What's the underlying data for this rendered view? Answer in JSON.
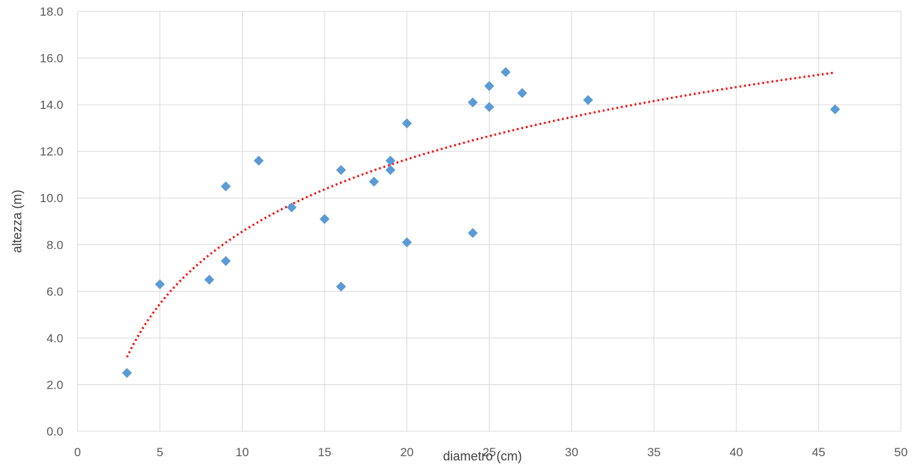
{
  "chart_data": {
    "type": "scatter",
    "title": "",
    "xlabel": "diametro (cm)",
    "ylabel": "altezza (m)",
    "xlim": [
      0,
      50
    ],
    "ylim": [
      0.0,
      18.0
    ],
    "xticks": [
      "0",
      "5",
      "10",
      "15",
      "20",
      "25",
      "30",
      "35",
      "40",
      "45",
      "50"
    ],
    "yticks": [
      "0.0",
      "2.0",
      "4.0",
      "6.0",
      "8.0",
      "10.0",
      "12.0",
      "14.0",
      "16.0",
      "18.0"
    ],
    "grid": true,
    "legend": "none",
    "series": [
      {
        "points": [
          [
            3,
            2.5
          ],
          [
            5,
            6.3
          ],
          [
            8,
            6.5
          ],
          [
            9,
            10.5
          ],
          [
            9,
            7.3
          ],
          [
            11,
            11.6
          ],
          [
            13,
            9.6
          ],
          [
            15,
            9.1
          ],
          [
            16,
            11.2
          ],
          [
            16,
            6.2
          ],
          [
            18,
            10.7
          ],
          [
            19,
            11.6
          ],
          [
            19,
            11.2
          ],
          [
            20,
            13.2
          ],
          [
            20,
            8.1
          ],
          [
            24,
            14.1
          ],
          [
            24,
            8.5
          ],
          [
            25,
            14.8
          ],
          [
            25,
            13.9
          ],
          [
            26,
            15.4
          ],
          [
            27,
            14.5
          ],
          [
            31,
            14.2
          ],
          [
            46,
            13.8
          ]
        ],
        "color": "#5b9bd5",
        "marker": "diamond"
      }
    ],
    "trendline": {
      "type": "logarithmic",
      "x_range": [
        3,
        46
      ],
      "values_at": [
        [
          3,
          3.2
        ],
        [
          5,
          5.5
        ],
        [
          10,
          8.4
        ],
        [
          20,
          11.7
        ],
        [
          30,
          13.6
        ],
        [
          46,
          15.3
        ]
      ],
      "color": "#ff0000",
      "style": "dotted"
    }
  }
}
